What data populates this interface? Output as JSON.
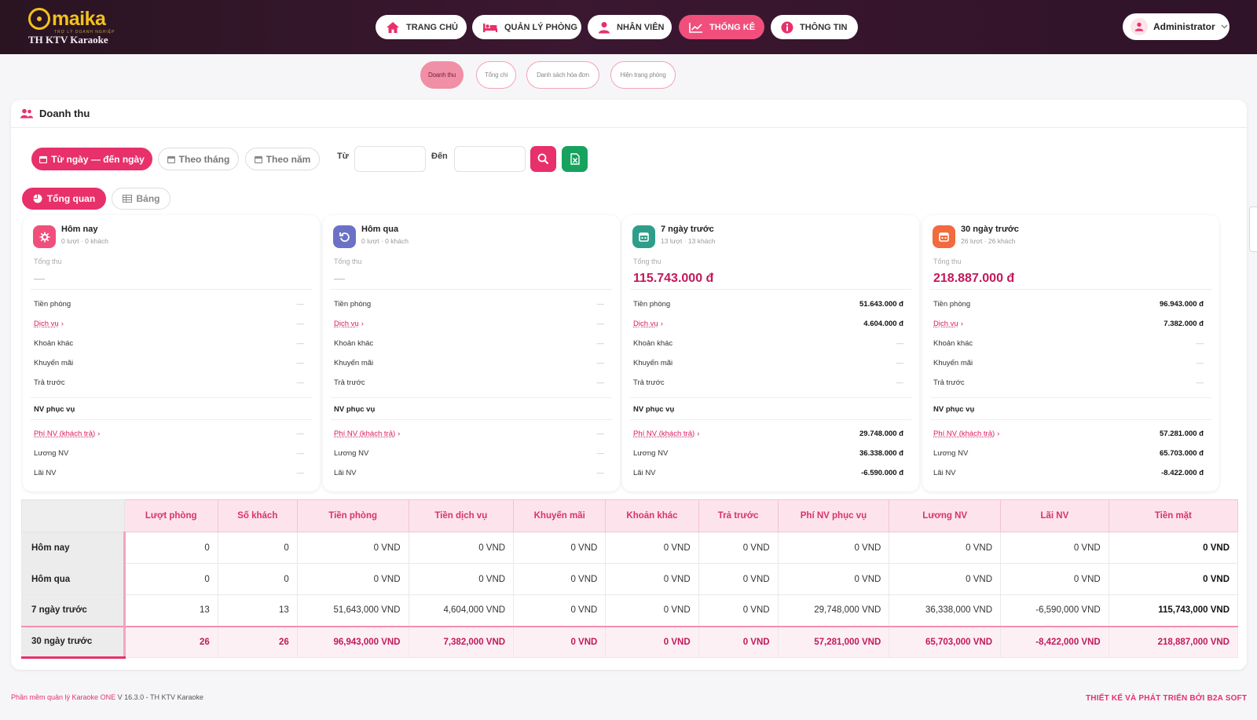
{
  "brand": {
    "logo_word": "maika",
    "logo_tagline": "TRỢ LÝ DOANH NGHIỆP",
    "company": "TH KTV Karaoke"
  },
  "nav": [
    {
      "label": "TRANG CHỦ",
      "icon": "home-icon"
    },
    {
      "label": "QUẢN LÝ PHÒNG",
      "icon": "bed-icon"
    },
    {
      "label": "NHÂN VIÊN",
      "icon": "user-icon"
    },
    {
      "label": "THỐNG KÊ",
      "icon": "chart-icon",
      "active": true
    },
    {
      "label": "THÔNG TIN",
      "icon": "info-icon"
    }
  ],
  "user": {
    "name": "Administrator"
  },
  "subtabs": [
    "Doanh thu",
    "Tổng chi",
    "Danh sách hóa đơn",
    "Hiện trạng phòng"
  ],
  "section_title": "Doanh thu",
  "filters": {
    "range": "Từ ngày — đến ngày",
    "month": "Theo tháng",
    "year": "Theo năm",
    "from": "Từ",
    "to": "Đến"
  },
  "view_tabs": {
    "overview": "Tổng quan",
    "table": "Bảng"
  },
  "cards": [
    {
      "title": "Hôm nay",
      "sub": "0 lượt · 0 khách",
      "total_label": "Tổng thu",
      "total": "—",
      "rows": [
        "—",
        "—",
        "—",
        "—",
        "—"
      ],
      "staff": [
        "—",
        "—",
        "—"
      ],
      "color": "#f04f7c",
      "icon": "gear-icon"
    },
    {
      "title": "Hôm qua",
      "sub": "0 lượt · 0 khách",
      "total_label": "Tổng thu",
      "total": "—",
      "rows": [
        "—",
        "—",
        "—",
        "—",
        "—"
      ],
      "staff": [
        "—",
        "—",
        "—"
      ],
      "color": "#6b72c6",
      "icon": "undo-icon"
    },
    {
      "title": "7 ngày trước",
      "sub": "13 lượt · 13 khách",
      "total_label": "Tổng thu",
      "total": "115.743.000 đ",
      "rows": [
        "51.643.000 đ",
        "4.604.000 đ",
        "—",
        "—",
        "—"
      ],
      "staff": [
        "29.748.000 đ",
        "36.338.000 đ",
        "-6.590.000 đ"
      ],
      "color": "#2e9e8a",
      "icon": "calendar-icon"
    },
    {
      "title": "30 ngày trước",
      "sub": "26 lượt · 26 khách",
      "total_label": "Tổng thu",
      "total": "218.887.000 đ",
      "rows": [
        "96.943.000 đ",
        "7.382.000 đ",
        "—",
        "—",
        "—"
      ],
      "staff": [
        "57.281.000 đ",
        "65.703.000 đ",
        "-8.422.000 đ"
      ],
      "color": "#f26a3d",
      "icon": "calendar-icon"
    }
  ],
  "row_labels": [
    "Tiền phòng",
    "Dịch vụ",
    "Khoản khác",
    "Khuyến mãi",
    "Trả trước"
  ],
  "staff_heading": "NV phục vụ",
  "staff_labels": [
    "Phí NV (khách trả)",
    "Lương NV",
    "Lãi NV"
  ],
  "table": {
    "headers": [
      "Lượt phòng",
      "Số khách",
      "Tiền phòng",
      "Tiền dịch vụ",
      "Khuyến mãi",
      "Khoản khác",
      "Trả trước",
      "Phí NV phục vụ",
      "Lương NV",
      "Lãi NV",
      "Tiền mặt"
    ],
    "rows": [
      {
        "label": "Hôm nay",
        "cells": [
          "0",
          "0",
          "0 VND",
          "0 VND",
          "0 VND",
          "0 VND",
          "0 VND",
          "0 VND",
          "0 VND",
          "0 VND",
          "0 VND"
        ]
      },
      {
        "label": "Hôm qua",
        "cells": [
          "0",
          "0",
          "0 VND",
          "0 VND",
          "0 VND",
          "0 VND",
          "0 VND",
          "0 VND",
          "0 VND",
          "0 VND",
          "0 VND"
        ]
      },
      {
        "label": "7 ngày trước",
        "cells": [
          "13",
          "13",
          "51,643,000 VND",
          "4,604,000 VND",
          "0 VND",
          "0 VND",
          "0 VND",
          "29,748,000 VND",
          "36,338,000 VND",
          "-6,590,000 VND",
          "115,743,000 VND"
        ]
      },
      {
        "label": "30 ngày trước",
        "cells": [
          "26",
          "26",
          "96,943,000 VND",
          "7,382,000 VND",
          "0 VND",
          "0 VND",
          "0 VND",
          "57,281,000 VND",
          "65,703,000 VND",
          "-8,422,000 VND",
          "218,887,000 VND"
        ]
      }
    ]
  },
  "footer": {
    "left_brand": "Phần mềm quản lý Karaoke ONE",
    "left_rest": " V 16.3.0 - TH KTV Karaoke",
    "right": "THIẾT KẾ VÀ PHÁT TRIỂN BỞI B2A SOFT"
  }
}
